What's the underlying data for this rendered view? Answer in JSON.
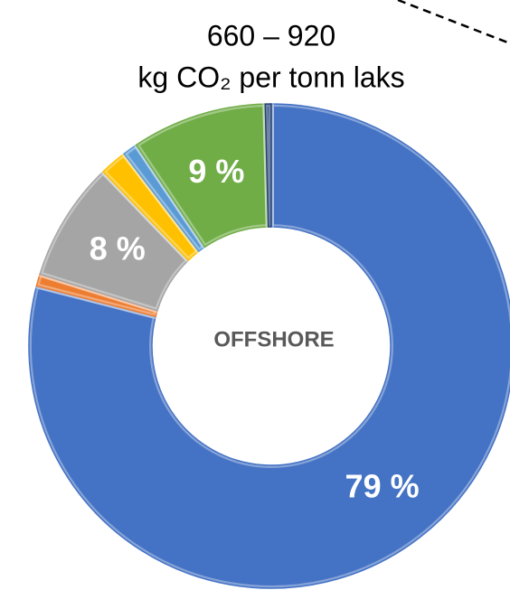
{
  "chart_data": {
    "type": "donut",
    "title": [
      "660 – 920",
      "kg CO₂ per tonn laks"
    ],
    "center_label": "OFFSHORE",
    "values": [
      79,
      0.8,
      8,
      1.8,
      1,
      9,
      0.4
    ],
    "value_labels": [
      "79 %",
      null,
      "8 %",
      null,
      null,
      "9 %",
      null
    ],
    "colors": [
      "#4472c4",
      "#ed7d31",
      "#a5a5a5",
      "#ffc000",
      "#5b9bd5",
      "#70ad47",
      "#264478"
    ]
  }
}
